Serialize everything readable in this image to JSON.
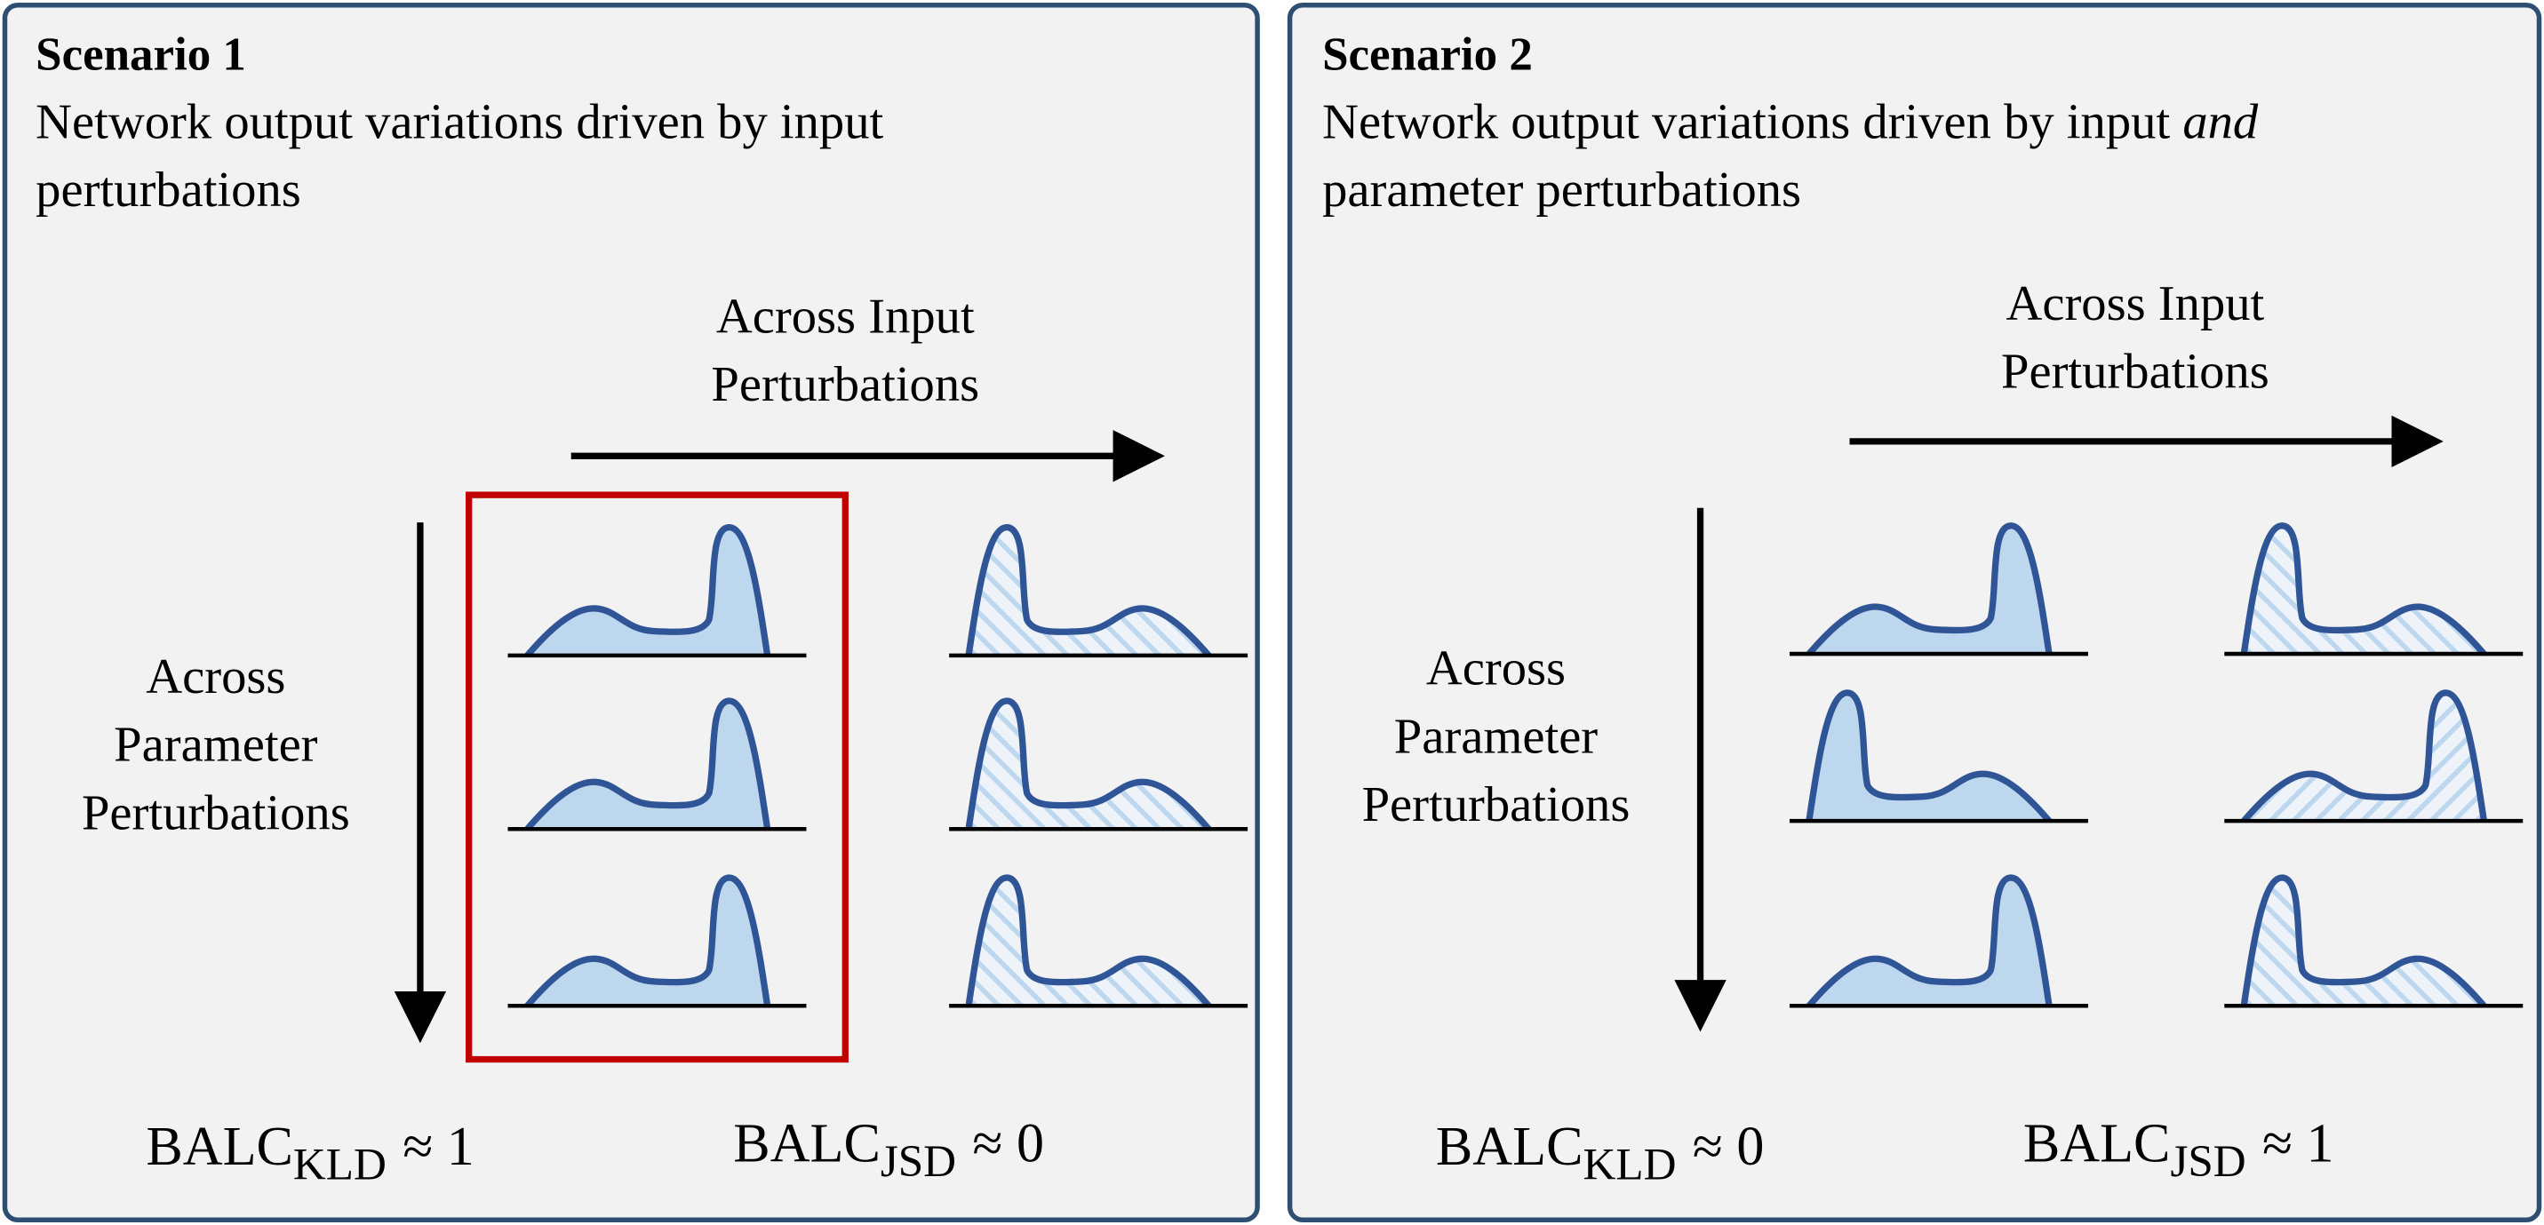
{
  "panels": [
    {
      "title": "Scenario 1",
      "description": [
        [
          {
            "text": "Network output variations driven by input"
          }
        ],
        [
          {
            "text": "perturbations"
          }
        ]
      ],
      "input_axis": [
        "Across Input",
        "Perturbations"
      ],
      "parameter_axis": [
        "Across",
        "Parameter",
        "Perturbations"
      ],
      "metrics": [
        {
          "base": "BALC",
          "sub": "KLD",
          "rest": "≈ 1"
        },
        {
          "base": "BALC",
          "sub": "JSD",
          "rest": "≈ 0"
        }
      ]
    },
    {
      "title": "Scenario 2",
      "description": [
        [
          {
            "text": "Network output variations driven by input "
          },
          {
            "text": "and",
            "italic": true
          }
        ],
        [
          {
            "text": "parameter perturbations"
          }
        ]
      ],
      "input_axis": [
        "Across Input",
        "Perturbations"
      ],
      "parameter_axis": [
        "Across",
        "Parameter",
        "Perturbations"
      ],
      "metrics": [
        {
          "base": "BALC",
          "sub": "KLD",
          "rest": "≈ 0"
        },
        {
          "base": "BALC",
          "sub": "JSD",
          "rest": "≈ 1"
        }
      ]
    }
  ]
}
